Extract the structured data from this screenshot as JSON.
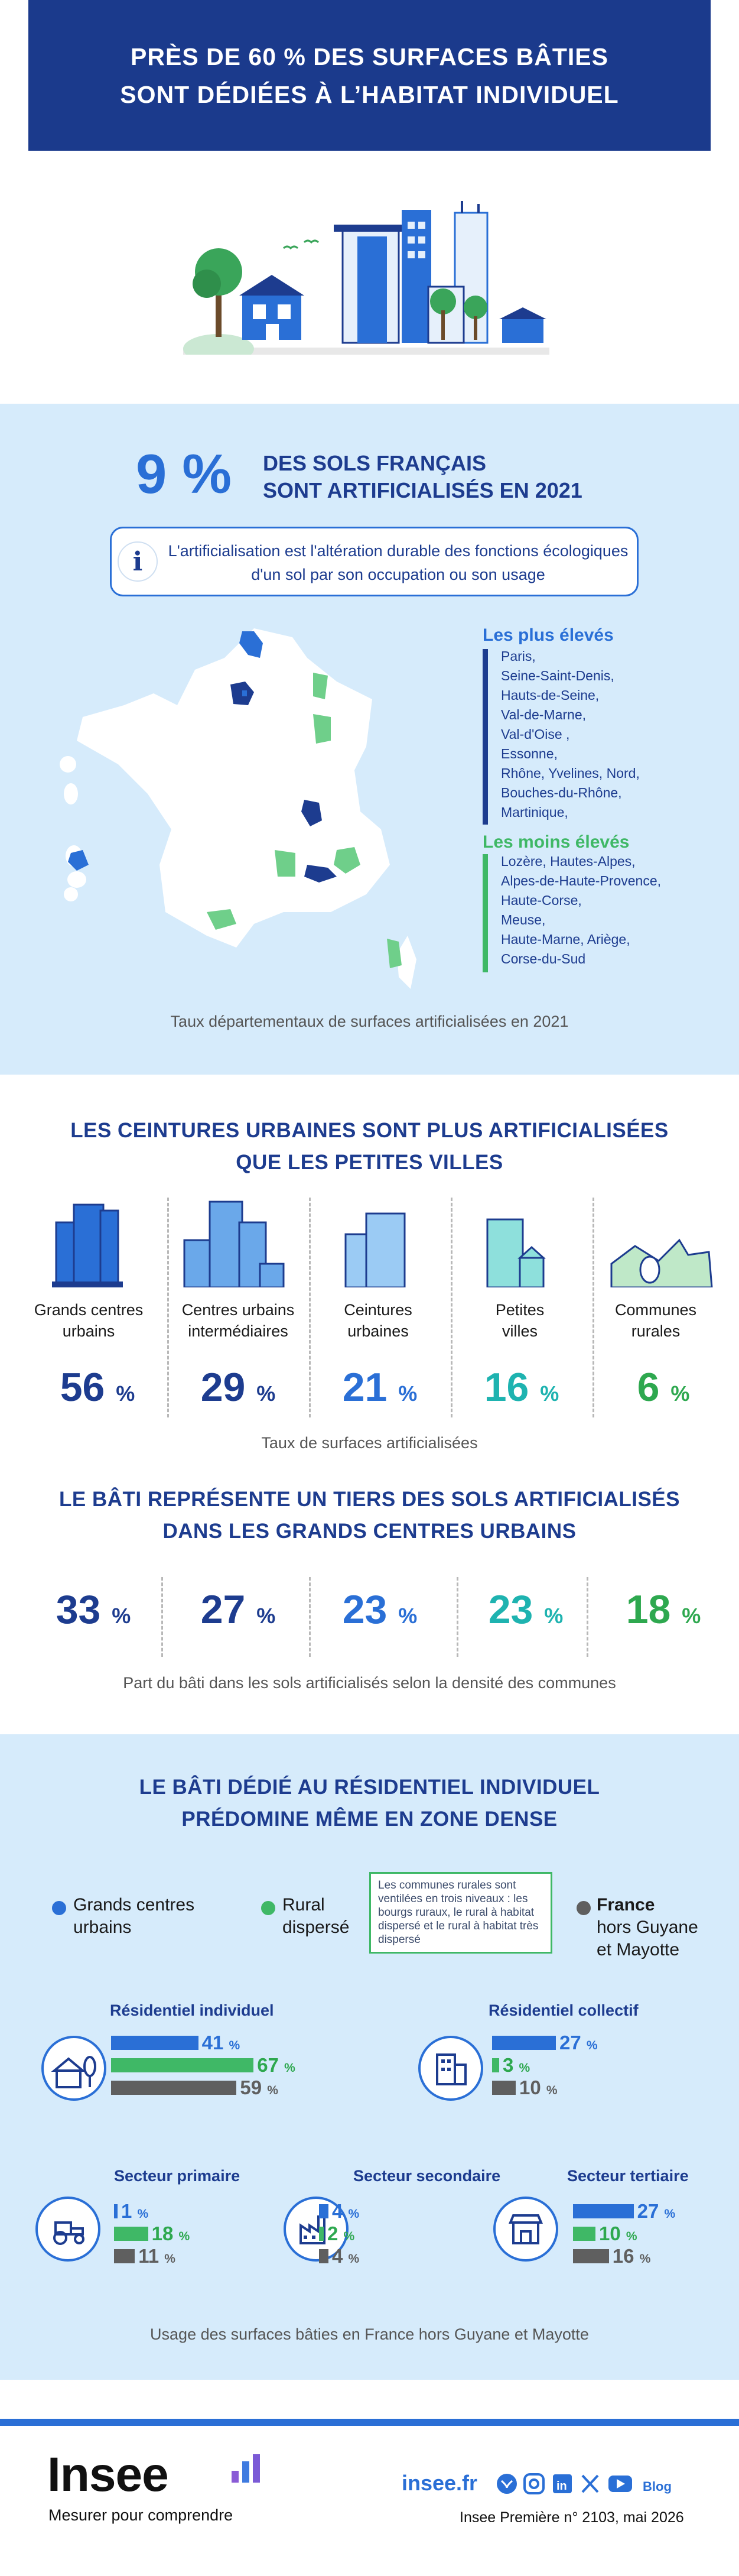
{
  "title": {
    "line1": "PRÈS DE 60 % DES SURFACES BÂTIES",
    "line2": "SONT DÉDIÉES À L’HABITAT INDIVIDUEL"
  },
  "sols": {
    "big_value": "9 %",
    "desc_line1": "DES SOLS FRANÇAIS",
    "desc_line2": "SONT ARTIFICIALISÉS EN 2021",
    "info_icon": "i",
    "info_text": "L'artificialisation est l'altération durable des fonctions écologiques d'un sol par son occupation ou son usage",
    "highest_title": "Les plus élevés",
    "highest": [
      "Paris,",
      "Seine-Saint-Denis,",
      "Hauts-de-Seine,",
      "Val-de-Marne,",
      "Val-d'Oise ,",
      "Essonne,",
      "Rhône, Yvelines, Nord,",
      "Bouches-du-Rhône,",
      "Martinique,"
    ],
    "lowest_title": "Les moins élevés",
    "lowest": [
      "Lozère, Hautes-Alpes,",
      "Alpes-de-Haute-Provence,",
      "Haute-Corse,",
      "Meuse,",
      "Haute-Marne, Ariège,",
      "Corse-du-Sud"
    ],
    "caption": "Taux départementaux de surfaces artificialisées en 2021"
  },
  "urban": {
    "title_line1": "LES CEINTURES URBAINES SONT PLUS ARTIFICIALISÉES",
    "title_line2": "QUE LES PETITES VILLES",
    "categories": [
      {
        "name1": "Grands centres",
        "name2": "urbains",
        "value": "56",
        "color": "#1d3c8f"
      },
      {
        "name1": "Centres urbains",
        "name2": "intermédiaires",
        "value": "29",
        "color": "#1d3c8f"
      },
      {
        "name1": "Ceintures",
        "name2": "urbaines",
        "value": "21",
        "color": "#2a6fd6"
      },
      {
        "name1": "Petites",
        "name2": "villes",
        "value": "16",
        "color": "#1eb3b0"
      },
      {
        "name1": "Communes",
        "name2": "rurales",
        "value": "6",
        "color": "#2ea84f"
      }
    ],
    "pct_sign": "%",
    "caption1": "Taux de surfaces artificialisées",
    "title2_line1": "LE BÂTI REPRÉSENTE UN TIERS DES SOLS ARTIFICIALISÉS",
    "title2_line2": "DANS LES GRANDS CENTRES URBAINS",
    "bati": [
      "33",
      "27",
      "23",
      "23",
      "18"
    ],
    "caption2": "Part du bâti dans les sols artificialisés selon la densité des communes"
  },
  "res": {
    "title_line1": "LE BÂTI DÉDIÉ AU RÉSIDENTIEL INDIVIDUEL",
    "title_line2": "PRÉDOMINE MÊME EN ZONE DENSE",
    "legend": [
      {
        "l1": "Grands centres",
        "l2": "urbains",
        "color": "#2a6fd6"
      },
      {
        "l1": "Rural",
        "l2": "dispersé",
        "color": "#3fb866"
      },
      {
        "l1": "France",
        "l2": "hors Guyane",
        "l3": "et Mayotte",
        "color": "#5f5f5f"
      }
    ],
    "note": "Les communes rurales sont ventilées en trois niveaux : les bourgs ruraux, le rural à habitat dispersé et le rural à habitat très dispersé",
    "groups": {
      "individuel": {
        "title": "Résidentiel individuel",
        "values": [
          "41",
          "67",
          "59"
        ],
        "raw": [
          41,
          67,
          59
        ]
      },
      "collectif": {
        "title": "Résidentiel collectif",
        "values": [
          "27",
          "3",
          "10"
        ],
        "raw": [
          27,
          3,
          10
        ]
      },
      "primaire": {
        "title": "Secteur primaire",
        "values": [
          "1",
          "18",
          "11"
        ],
        "raw": [
          1,
          18,
          11
        ]
      },
      "secondaire": {
        "title": "Secteur secondaire",
        "values": [
          "4",
          "2",
          "4"
        ],
        "raw": [
          4,
          2,
          4
        ]
      },
      "tertiaire": {
        "title": "Secteur tertiaire",
        "values": [
          "27",
          "10",
          "16"
        ],
        "raw": [
          27,
          10,
          16
        ]
      }
    },
    "caption": "Usage des surfaces bâties en France hors Guyane et Mayotte"
  },
  "footer": {
    "logo": "Insee",
    "tagline": "Mesurer pour comprendre",
    "site": "insee.fr",
    "blog": "Blog",
    "icons": [
      "bluesky-icon",
      "instagram-icon",
      "linkedin-icon",
      "x-icon",
      "youtube-icon",
      "blog-icon"
    ],
    "pub": "Insee Première n° 2103, mai 2026"
  },
  "colors": {
    "navy": "#1b3a8c",
    "blue": "#2a6fd6",
    "green": "#3fb866",
    "teal": "#1eb3b0",
    "grey": "#5f5f5f",
    "lightbg": "#d6ebfb"
  }
}
